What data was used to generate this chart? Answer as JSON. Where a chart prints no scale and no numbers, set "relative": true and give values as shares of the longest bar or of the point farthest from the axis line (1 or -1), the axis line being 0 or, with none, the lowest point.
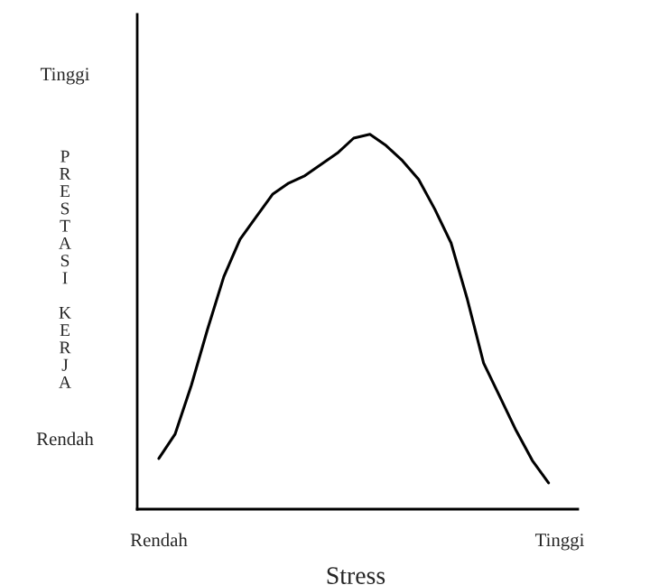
{
  "chart_data": {
    "type": "line",
    "relative": true,
    "xlabel": "Stress",
    "ylabel": "PRESTASI KERJA",
    "color": "#000000",
    "legend": false,
    "marker": "none",
    "line_style": "solid",
    "annotations": [
      "Tinggi",
      "Rendah",
      "Rendah",
      "Tinggi"
    ],
    "categories": [
      null,
      null,
      null,
      null,
      null,
      null,
      null,
      null,
      null,
      null,
      null,
      null,
      null,
      null,
      null,
      null,
      null,
      null,
      null,
      null,
      null,
      null,
      null,
      null,
      null
    ],
    "values": [
      0.135,
      0.2,
      0.33,
      0.48,
      0.62,
      0.72,
      0.78,
      0.84,
      0.87,
      0.89,
      0.92,
      0.95,
      0.99,
      1.0,
      0.97,
      0.93,
      0.88,
      0.8,
      0.71,
      0.56,
      0.39,
      0.3,
      0.21,
      0.13,
      0.07
    ]
  }
}
